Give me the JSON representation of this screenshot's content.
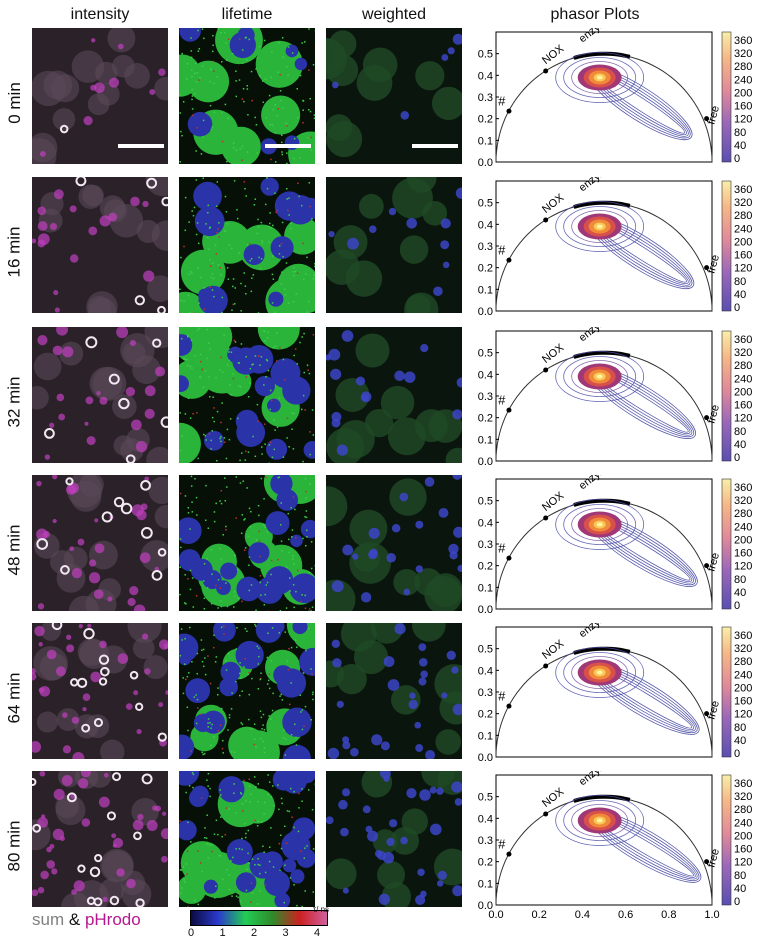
{
  "headers": {
    "intensity": "intensity",
    "lifetime": "lifetime",
    "weighted": "weighted",
    "phasor": "phasor Plots"
  },
  "rows": [
    {
      "label": "0 min",
      "magenta": 0.1,
      "lifetime_green": 0.55
    },
    {
      "label": "16 min",
      "magenta": 0.35,
      "lifetime_green": 0.5
    },
    {
      "label": "32 min",
      "magenta": 0.5,
      "lifetime_green": 0.45
    },
    {
      "label": "48 min",
      "magenta": 0.7,
      "lifetime_green": 0.42
    },
    {
      "label": "64 min",
      "magenta": 0.85,
      "lifetime_green": 0.4
    },
    {
      "label": "80 min",
      "magenta": 1.0,
      "lifetime_green": 0.38
    }
  ],
  "legend": {
    "sum": "sum",
    "amp": "&",
    "phrodo": "pHrodo"
  },
  "lifetime_colorbar": {
    "unit": "τ/ ns",
    "ticks": [
      "0",
      "1",
      "2",
      "3",
      "4"
    ],
    "colors": [
      "#0a0a40",
      "#2a3acc",
      "#22cc55",
      "#2f8a2a",
      "#cc2020",
      "#d060a0"
    ]
  },
  "chart_data": [
    {
      "type": "contour",
      "xlabel": "",
      "ylabel": "",
      "xlim": [
        0.0,
        1.0
      ],
      "ylim": [
        0.0,
        0.6
      ],
      "xticks": [
        "0.0",
        "0.2",
        "0.4",
        "0.6",
        "0.8",
        "1.0"
      ],
      "yticks": [
        "0.0",
        "0.1",
        "0.2",
        "0.3",
        "0.4",
        "0.5"
      ],
      "annotations": [
        "#",
        "NOX",
        "enzy.",
        "free"
      ],
      "colorbar_ticks": [
        "0",
        "40",
        "80",
        "120",
        "160",
        "200",
        "240",
        "280",
        "320",
        "360"
      ],
      "peak": [
        0.48,
        0.39
      ],
      "tail_end": [
        0.85,
        0.15
      ]
    }
  ]
}
